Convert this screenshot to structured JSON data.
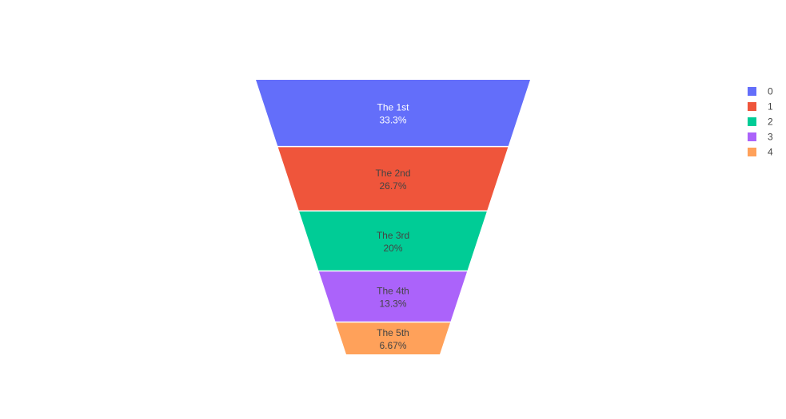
{
  "chart_data": {
    "type": "funnelarea",
    "labels": [
      "The 1st",
      "The 2nd",
      "The 3rd",
      "The 4th",
      "The 5th"
    ],
    "values": [
      5,
      4,
      3,
      2,
      1
    ],
    "percent_labels": [
      "33.3%",
      "26.7%",
      "20%",
      "13.3%",
      "6.67%"
    ],
    "colors": [
      "#636efa",
      "#EF553B",
      "#00cc96",
      "#ab63fa",
      "#FFA15A"
    ],
    "text_colors": [
      "#ffffff",
      "#444444",
      "#444444",
      "#444444",
      "#444444"
    ],
    "legend": {
      "entries": [
        "0",
        "1",
        "2",
        "3",
        "4"
      ],
      "placement": "top-right"
    }
  }
}
